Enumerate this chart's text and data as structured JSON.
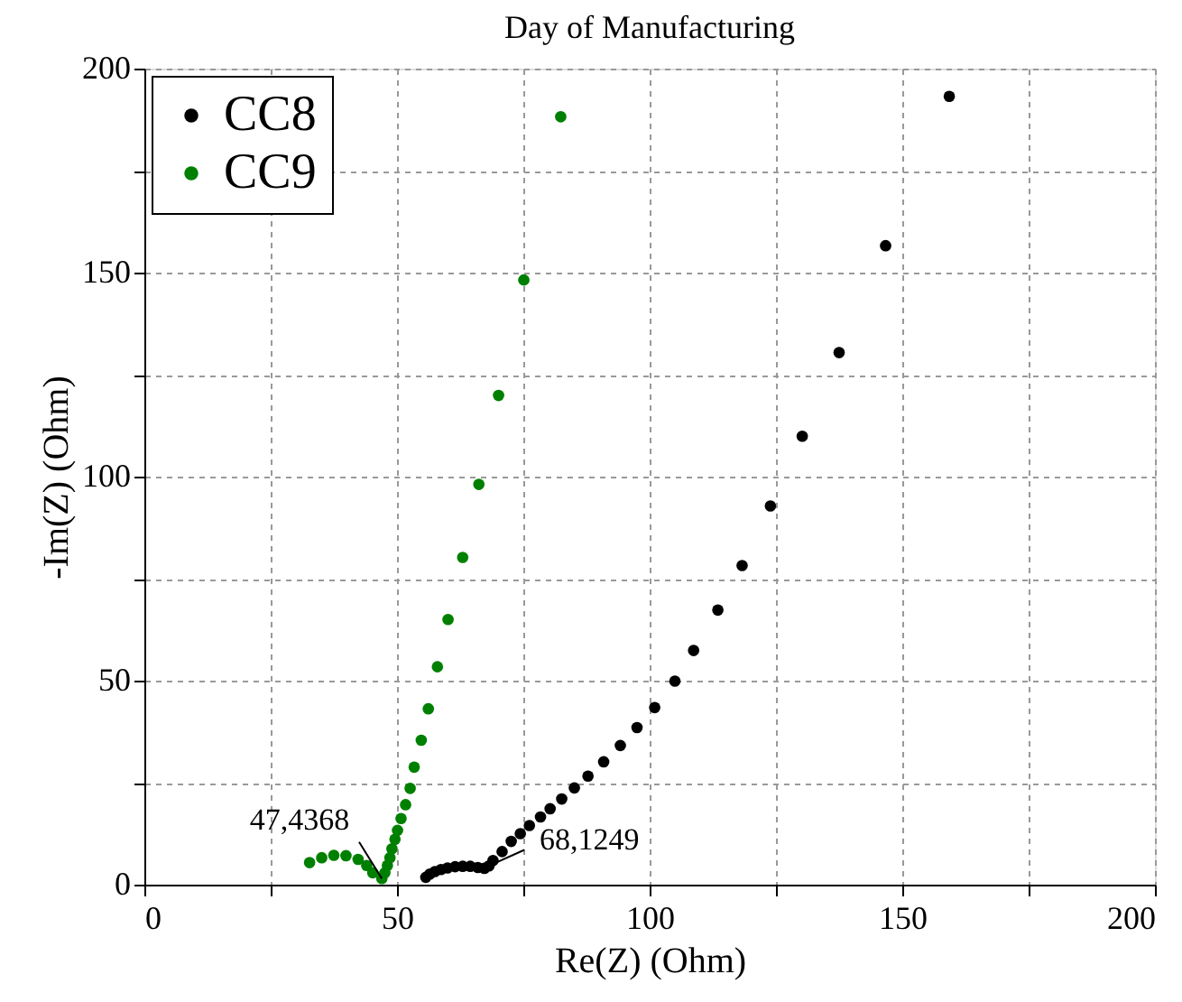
{
  "chart_data": {
    "type": "scatter",
    "title": "Day of Manufacturing",
    "xlabel": "Re(Z) (Ohm)",
    "ylabel": "-Im(Z) (Ohm)",
    "xlim": [
      0,
      200
    ],
    "ylim": [
      0,
      200
    ],
    "xticks": [
      0,
      {
        "value": 25,
        "label": null
      },
      50,
      {
        "value": 75,
        "label": null
      },
      100,
      {
        "value": 125,
        "label": null
      },
      150,
      {
        "value": 175,
        "label": null
      },
      200
    ],
    "yticks": [
      0,
      {
        "value": 25,
        "label": null
      },
      50,
      {
        "value": 75,
        "label": null
      },
      100,
      {
        "value": 125,
        "label": null
      },
      150,
      {
        "value": 175,
        "label": null
      },
      200
    ],
    "grid": true,
    "legend": "top left",
    "marker": "circle",
    "series": [
      {
        "name": "CC8",
        "color": "#000000",
        "x": [
          55.7,
          56.5,
          57.5,
          58.7,
          60,
          61.5,
          63,
          64.5,
          66,
          67.3,
          68.2,
          69,
          70.8,
          72.6,
          74.4,
          76.2,
          78.4,
          80.3,
          82.6,
          85.1,
          87.8,
          90.9,
          94.2,
          97.5,
          101,
          105,
          108.7,
          113.5,
          118.3,
          123.9,
          130.2,
          137.5,
          146.7,
          159.3
        ],
        "values": [
          1.8,
          2.6,
          3.2,
          3.7,
          4.1,
          4.4,
          4.5,
          4.5,
          4.2,
          4.0,
          4.6,
          5.9,
          8.1,
          10.6,
          12.5,
          14.5,
          16.6,
          18.6,
          21.0,
          23.7,
          26.6,
          30.1,
          34.1,
          38.5,
          43.4,
          49.9,
          57.4,
          67.3,
          78.2,
          92.8,
          109.9,
          130.4,
          156.6,
          193.2
        ]
      },
      {
        "name": "CC9",
        "color": "#008000",
        "x": [
          32.7,
          35.1,
          37.5,
          39.9,
          42.3,
          44.0,
          45.2,
          47.0,
          47.6,
          48.1,
          48.6,
          49.0,
          49.6,
          50.1,
          50.8,
          51.7,
          52.6,
          53.4,
          54.8,
          56.2,
          58.0,
          60.1,
          63.0,
          66.2,
          70.1,
          75.1,
          82.4
        ],
        "values": [
          5.4,
          6.6,
          7.2,
          7.1,
          6.2,
          4.7,
          2.9,
          1.5,
          2.9,
          4.7,
          6.6,
          8.8,
          11.1,
          13.3,
          16.2,
          19.6,
          23.6,
          28.8,
          35.4,
          43.1,
          53.4,
          65.0,
          80.2,
          98.1,
          119.9,
          148.2,
          188.2
        ]
      }
    ],
    "annotations": [
      {
        "text": "47,4368",
        "x": 47.0,
        "y": 1.5
      },
      {
        "text": "68,1249",
        "x": 68.2,
        "y": 4.6
      }
    ]
  }
}
